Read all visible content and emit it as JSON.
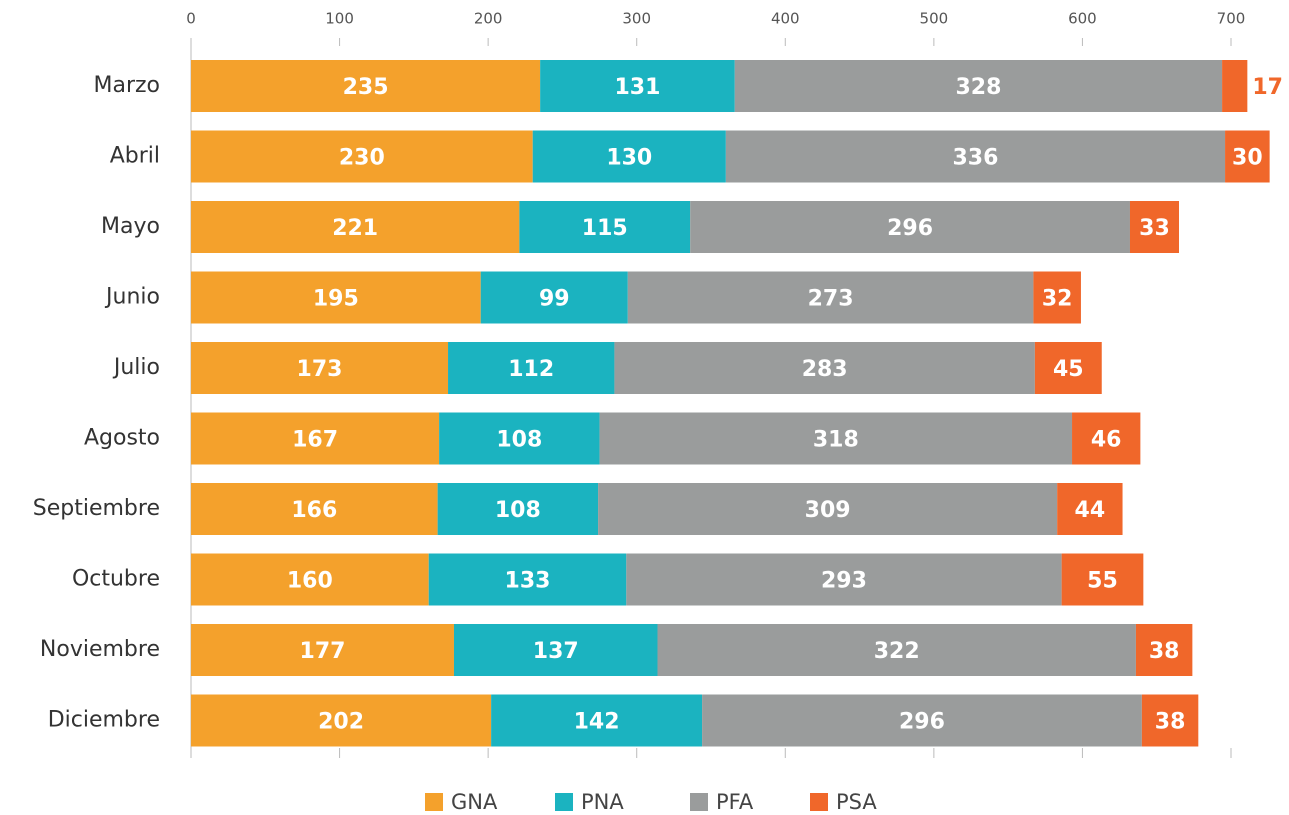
{
  "chart_data": {
    "type": "bar",
    "orientation": "horizontal",
    "stacked": true,
    "categories": [
      "Marzo",
      "Abril",
      "Mayo",
      "Junio",
      "Julio",
      "Agosto",
      "Septiembre",
      "Octubre",
      "Noviembre",
      "Diciembre"
    ],
    "series": [
      {
        "name": "GNA",
        "color": "#f4a12c",
        "values": [
          235,
          230,
          221,
          195,
          173,
          167,
          166,
          160,
          177,
          202
        ]
      },
      {
        "name": "PNA",
        "color": "#1bb3c0",
        "values": [
          131,
          130,
          115,
          99,
          112,
          108,
          108,
          133,
          137,
          142
        ]
      },
      {
        "name": "PFA",
        "color": "#9a9c9c",
        "values": [
          328,
          336,
          296,
          273,
          283,
          318,
          309,
          293,
          322,
          296
        ]
      },
      {
        "name": "PSA",
        "color": "#f0672a",
        "values": [
          17,
          30,
          33,
          32,
          45,
          46,
          44,
          55,
          38,
          38
        ]
      }
    ],
    "xlim": [
      0,
      730
    ],
    "xticks": [
      0,
      100,
      200,
      300,
      400,
      500,
      600,
      700
    ],
    "legend": "bottom"
  }
}
